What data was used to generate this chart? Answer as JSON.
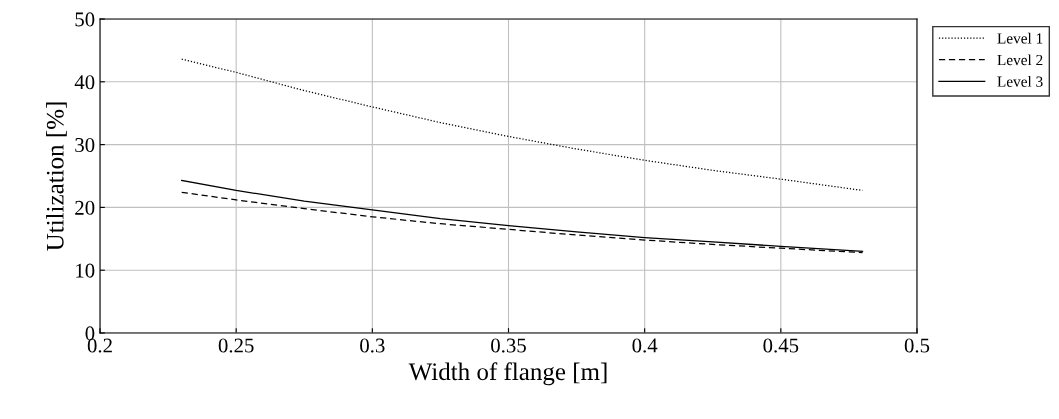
{
  "chart_data": {
    "type": "line",
    "xlabel": "Width of flange [m]",
    "ylabel": "Utilization [%]",
    "x": [
      0.23,
      0.25,
      0.275,
      0.3,
      0.325,
      0.35,
      0.375,
      0.4,
      0.425,
      0.45,
      0.48
    ],
    "series": [
      {
        "name": "Level 1",
        "color": "#000000",
        "line_style": "dotted",
        "values": [
          43.6,
          41.5,
          38.6,
          36.0,
          33.5,
          31.3,
          29.3,
          27.5,
          25.9,
          24.5,
          22.7
        ]
      },
      {
        "name": "Level 2",
        "color": "#000000",
        "line_style": "dashed",
        "values": [
          22.4,
          21.2,
          19.8,
          18.5,
          17.4,
          16.5,
          15.6,
          14.8,
          14.1,
          13.5,
          12.8
        ]
      },
      {
        "name": "Level 3",
        "color": "#000000",
        "line_style": "solid",
        "values": [
          24.3,
          22.7,
          21.0,
          19.6,
          18.2,
          17.1,
          16.1,
          15.2,
          14.5,
          13.8,
          13.0
        ]
      }
    ],
    "xlim": [
      0.2,
      0.5
    ],
    "ylim": [
      0,
      50
    ],
    "xticks": [
      0.2,
      0.25,
      0.3,
      0.35,
      0.4,
      0.45,
      0.5
    ],
    "yticks": [
      0,
      10,
      20,
      30,
      40,
      50
    ],
    "grid": true,
    "legend": "top right",
    "marker": "none"
  }
}
